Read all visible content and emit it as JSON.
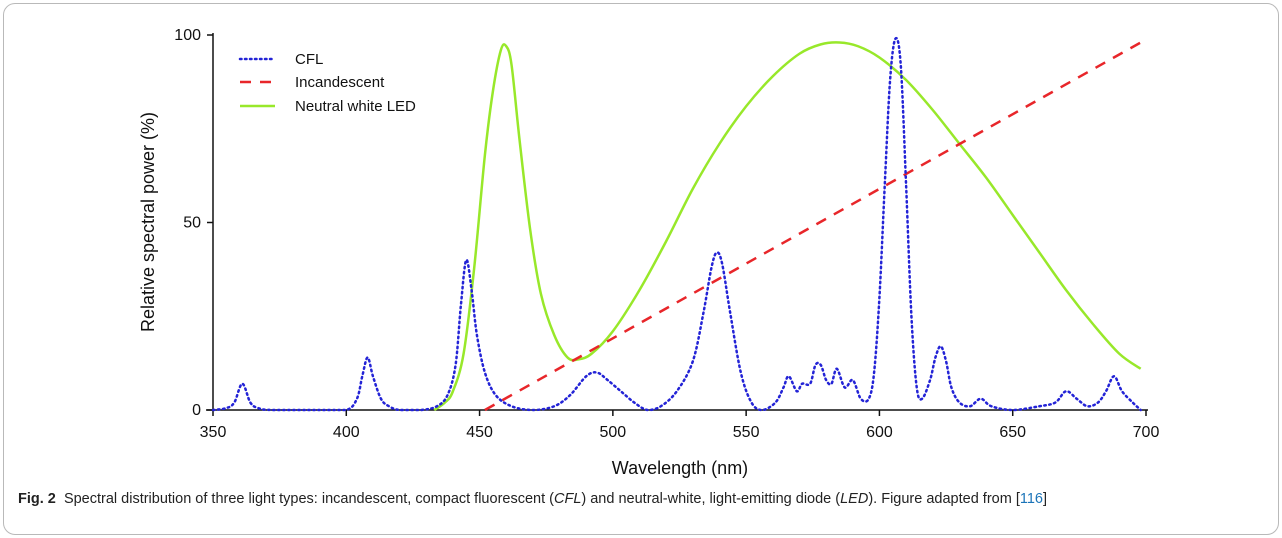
{
  "caption": {
    "fig_label": "Fig. 2",
    "text_1": "Spectral distribution of three light types: incandescent, compact fluorescent (",
    "abbr_cfl": "CFL",
    "text_2": ") and neutral-white, light-emitting diode (",
    "abbr_led": "LED",
    "text_3": "). Figure adapted from [",
    "ref": "116",
    "text_4": "]"
  },
  "colors": {
    "cfl": "#2323d6",
    "incandescent": "#e8262a",
    "led": "#98e82a"
  },
  "chart_data": {
    "type": "line",
    "title": "",
    "xlabel": "Wavelength (nm)",
    "ylabel": "Relative spectral power (%)",
    "xlim": [
      350,
      700
    ],
    "ylim": [
      0,
      100
    ],
    "xticks": [
      "350",
      "400",
      "450",
      "500",
      "550",
      "600",
      "650",
      "700"
    ],
    "yticks": [
      "0",
      "50",
      "100"
    ],
    "grid": false,
    "legend_position": "top-left",
    "series": [
      {
        "name": "CFL",
        "style": "dotted",
        "points": [
          [
            350,
            0
          ],
          [
            355,
            0.5
          ],
          [
            358,
            2
          ],
          [
            361,
            7
          ],
          [
            364,
            2
          ],
          [
            367,
            0.5
          ],
          [
            372,
            0
          ],
          [
            390,
            0
          ],
          [
            400,
            0
          ],
          [
            404,
            3
          ],
          [
            406,
            9
          ],
          [
            408,
            14
          ],
          [
            410,
            9
          ],
          [
            413,
            3
          ],
          [
            416,
            1
          ],
          [
            420,
            0
          ],
          [
            428,
            0
          ],
          [
            434,
            1
          ],
          [
            438,
            4
          ],
          [
            441,
            12
          ],
          [
            443,
            28
          ],
          [
            445,
            40
          ],
          [
            447,
            32
          ],
          [
            449,
            20
          ],
          [
            452,
            10
          ],
          [
            456,
            4
          ],
          [
            462,
            1
          ],
          [
            470,
            0
          ],
          [
            478,
            1
          ],
          [
            484,
            4
          ],
          [
            490,
            9
          ],
          [
            494,
            10
          ],
          [
            498,
            8
          ],
          [
            503,
            5
          ],
          [
            508,
            2
          ],
          [
            513,
            0
          ],
          [
            518,
            1
          ],
          [
            524,
            5
          ],
          [
            530,
            13
          ],
          [
            534,
            26
          ],
          [
            537,
            38
          ],
          [
            539,
            42
          ],
          [
            541,
            39
          ],
          [
            544,
            26
          ],
          [
            548,
            10
          ],
          [
            552,
            2
          ],
          [
            556,
            0
          ],
          [
            561,
            2
          ],
          [
            564,
            6
          ],
          [
            566,
            9
          ],
          [
            569,
            5
          ],
          [
            571,
            7
          ],
          [
            574,
            7
          ],
          [
            576,
            12
          ],
          [
            578,
            12
          ],
          [
            580,
            8
          ],
          [
            582,
            7
          ],
          [
            584,
            11
          ],
          [
            587,
            6
          ],
          [
            590,
            8
          ],
          [
            593,
            3
          ],
          [
            596,
            3
          ],
          [
            598,
            10
          ],
          [
            600,
            30
          ],
          [
            602,
            60
          ],
          [
            604,
            88
          ],
          [
            606,
            99
          ],
          [
            608,
            92
          ],
          [
            610,
            60
          ],
          [
            612,
            25
          ],
          [
            614,
            6
          ],
          [
            616,
            3
          ],
          [
            619,
            8
          ],
          [
            621,
            14
          ],
          [
            623,
            17
          ],
          [
            625,
            13
          ],
          [
            627,
            6
          ],
          [
            630,
            2
          ],
          [
            634,
            1
          ],
          [
            638,
            3
          ],
          [
            642,
            1
          ],
          [
            650,
            0
          ],
          [
            660,
            1
          ],
          [
            666,
            2
          ],
          [
            670,
            5
          ],
          [
            674,
            3
          ],
          [
            678,
            1
          ],
          [
            682,
            2
          ],
          [
            685,
            5
          ],
          [
            688,
            9
          ],
          [
            691,
            5
          ],
          [
            695,
            2
          ],
          [
            698,
            0
          ]
        ]
      },
      {
        "name": "Incandescent",
        "style": "dashed",
        "points": [
          [
            452,
            0
          ],
          [
            698,
            98
          ]
        ]
      },
      {
        "name": "Neutral white LED",
        "style": "solid",
        "points": [
          [
            433,
            0
          ],
          [
            437,
            2
          ],
          [
            440,
            5
          ],
          [
            444,
            15
          ],
          [
            448,
            38
          ],
          [
            452,
            68
          ],
          [
            455,
            85
          ],
          [
            458,
            96
          ],
          [
            460,
            97
          ],
          [
            462,
            92
          ],
          [
            465,
            72
          ],
          [
            469,
            48
          ],
          [
            473,
            31
          ],
          [
            478,
            20
          ],
          [
            483,
            14
          ],
          [
            487,
            13.5
          ],
          [
            492,
            15
          ],
          [
            500,
            21
          ],
          [
            510,
            32
          ],
          [
            520,
            45
          ],
          [
            530,
            59
          ],
          [
            540,
            71
          ],
          [
            550,
            81
          ],
          [
            560,
            89
          ],
          [
            570,
            95
          ],
          [
            578,
            97.5
          ],
          [
            585,
            98
          ],
          [
            592,
            97
          ],
          [
            600,
            94
          ],
          [
            610,
            88
          ],
          [
            620,
            80
          ],
          [
            630,
            71
          ],
          [
            640,
            62
          ],
          [
            650,
            52
          ],
          [
            660,
            42
          ],
          [
            670,
            32
          ],
          [
            680,
            23
          ],
          [
            690,
            15
          ],
          [
            698,
            11
          ]
        ]
      }
    ]
  }
}
